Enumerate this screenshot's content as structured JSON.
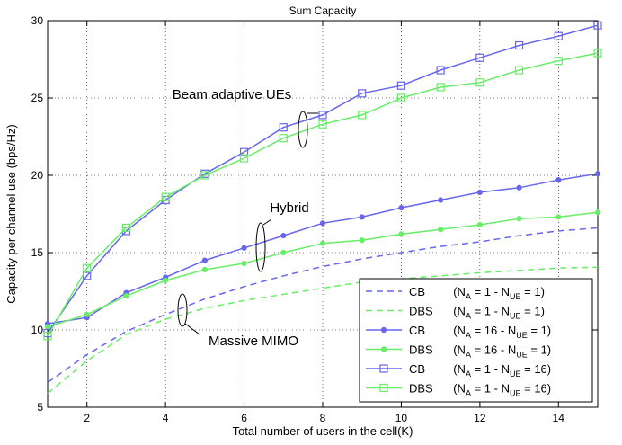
{
  "chart_data": {
    "type": "line",
    "title": "Sum Capacity",
    "xlabel": "Total number of users in the cell(K)",
    "ylabel": "Capacity per channel use (bps/Hz)",
    "xlim": [
      1,
      15
    ],
    "ylim": [
      5,
      30
    ],
    "xticks": [
      "2",
      "4",
      "6",
      "8",
      "10",
      "12",
      "14"
    ],
    "yticks": [
      "5",
      "10",
      "15",
      "20",
      "25",
      "30"
    ],
    "grid": true,
    "legend_position": "bottom-right",
    "annotations": [
      {
        "text": "Beam adaptive UEs"
      },
      {
        "text": "Hybrid"
      },
      {
        "text": "Massive MIMO"
      }
    ],
    "series": [
      {
        "legend_label": "CB",
        "params": {
          "na": "1",
          "nue": "1"
        },
        "color": "#6666ee",
        "style": "dashed",
        "marker": "none",
        "x": [
          1,
          2,
          3,
          4,
          5,
          6,
          7,
          8,
          9,
          10,
          11,
          12,
          13,
          14,
          15
        ],
        "y": [
          6.6,
          8.4,
          9.9,
          11.0,
          12.0,
          12.8,
          13.5,
          14.1,
          14.6,
          15.0,
          15.4,
          15.7,
          16.1,
          16.4,
          16.6
        ]
      },
      {
        "legend_label": "DBS",
        "params": {
          "na": "1",
          "nue": "1"
        },
        "color": "#66ee66",
        "style": "dashed",
        "marker": "none",
        "x": [
          1,
          2,
          3,
          4,
          5,
          6,
          7,
          8,
          9,
          10,
          11,
          12,
          13,
          14,
          15
        ],
        "y": [
          5.9,
          8.0,
          9.7,
          10.7,
          11.4,
          11.9,
          12.3,
          12.7,
          13.1,
          13.3,
          13.5,
          13.7,
          13.85,
          14.0,
          14.05
        ]
      },
      {
        "legend_label": "CB",
        "params": {
          "na": "16",
          "nue": "1"
        },
        "color": "#6666ee",
        "style": "solid",
        "marker": "dot",
        "x": [
          1,
          2,
          3,
          4,
          5,
          6,
          7,
          8,
          9,
          10,
          11,
          12,
          13,
          14,
          15
        ],
        "y": [
          10.4,
          10.8,
          12.4,
          13.4,
          14.5,
          15.3,
          16.1,
          16.9,
          17.3,
          17.9,
          18.4,
          18.9,
          19.2,
          19.7,
          20.1
        ]
      },
      {
        "legend_label": "DBS",
        "params": {
          "na": "16",
          "nue": "1"
        },
        "color": "#66ee66",
        "style": "solid",
        "marker": "dot",
        "x": [
          1,
          2,
          3,
          4,
          5,
          6,
          7,
          8,
          9,
          10,
          11,
          12,
          13,
          14,
          15
        ],
        "y": [
          10.2,
          11.0,
          12.2,
          13.2,
          13.9,
          14.3,
          15.0,
          15.6,
          15.8,
          16.2,
          16.5,
          16.8,
          17.2,
          17.3,
          17.6
        ]
      },
      {
        "legend_label": "CB",
        "params": {
          "na": "1",
          "nue": "16"
        },
        "color": "#6666ee",
        "style": "solid",
        "marker": "square",
        "x": [
          1,
          2,
          3,
          4,
          5,
          6,
          7,
          8,
          9,
          10,
          11,
          12,
          13,
          14,
          15
        ],
        "y": [
          9.8,
          13.5,
          16.4,
          18.4,
          20.1,
          21.5,
          23.1,
          23.9,
          25.3,
          25.8,
          26.8,
          27.6,
          28.4,
          29.0,
          29.7
        ]
      },
      {
        "legend_label": "DBS",
        "params": {
          "na": "1",
          "nue": "16"
        },
        "color": "#66ee66",
        "style": "solid",
        "marker": "square",
        "x": [
          1,
          2,
          3,
          4,
          5,
          6,
          7,
          8,
          9,
          10,
          11,
          12,
          13,
          14,
          15
        ],
        "y": [
          9.6,
          14.0,
          16.6,
          18.6,
          20.0,
          21.1,
          22.4,
          23.3,
          23.9,
          25.0,
          25.7,
          26.0,
          26.8,
          27.4,
          27.9
        ]
      }
    ]
  }
}
